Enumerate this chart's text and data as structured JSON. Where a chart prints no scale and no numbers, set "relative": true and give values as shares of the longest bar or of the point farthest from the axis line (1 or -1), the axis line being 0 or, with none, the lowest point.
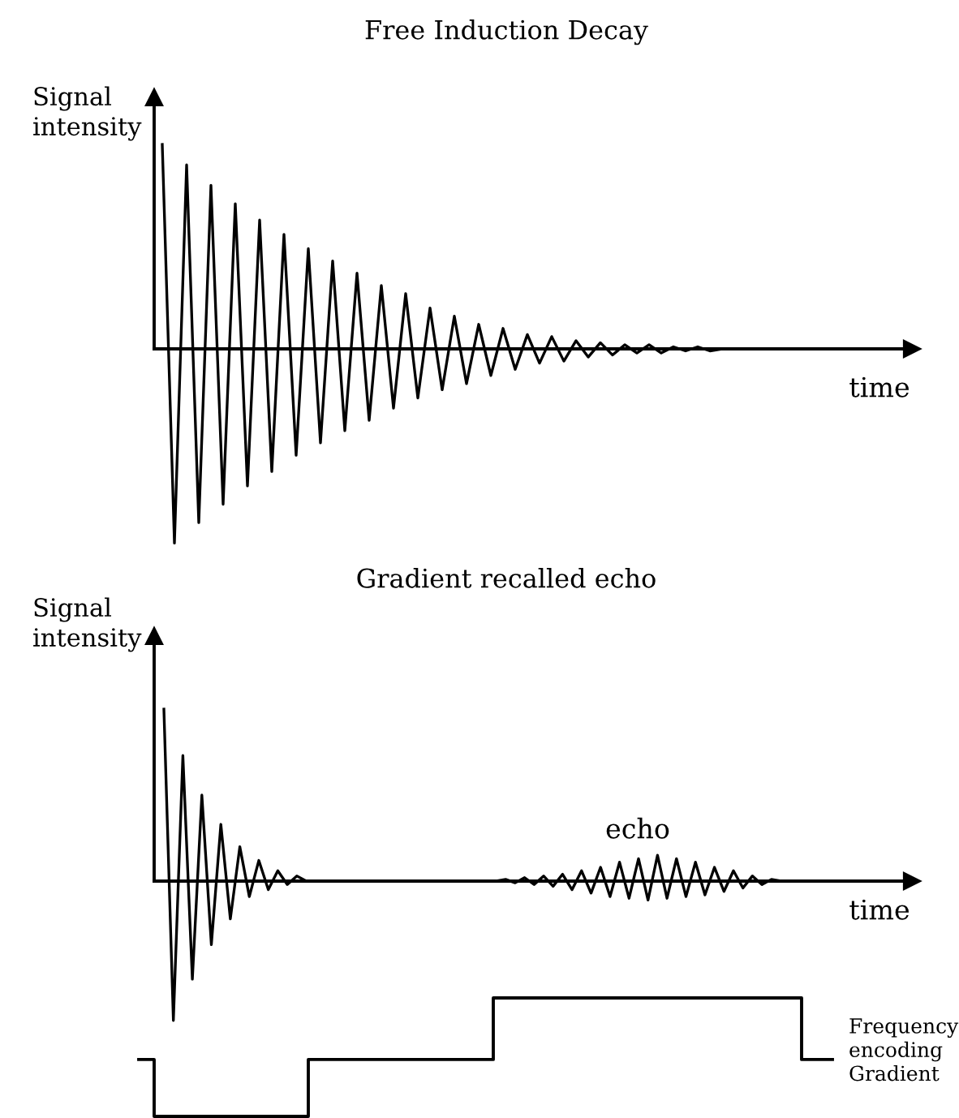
{
  "chart_data": [
    {
      "type": "line",
      "title": "Free Induction Decay",
      "xlabel": "time",
      "ylabel": "Signal\nintensity",
      "relative": true,
      "categories": [
        null,
        null,
        null,
        null,
        null,
        null,
        null,
        null,
        null,
        null,
        null,
        null,
        null,
        null,
        null,
        null,
        null,
        null,
        null,
        null,
        null,
        null,
        null,
        null,
        null,
        null,
        null,
        null,
        null,
        null,
        null,
        null,
        null,
        null,
        null,
        null,
        null,
        null,
        null,
        null,
        null,
        null,
        null,
        null,
        null,
        null,
        null,
        null,
        null,
        null,
        null,
        null,
        null,
        null,
        null,
        null,
        null,
        null,
        null,
        null,
        null,
        null
      ],
      "series": [
        {
          "color": "#000000",
          "values": [
            1,
            -0.95,
            0.9,
            -0.85,
            0.8,
            -0.76,
            0.71,
            -0.67,
            0.63,
            -0.6,
            0.56,
            -0.52,
            0.49,
            -0.46,
            0.43,
            -0.4,
            0.37,
            -0.35,
            0.31,
            -0.29,
            0.27,
            -0.24,
            0.2,
            -0.2,
            0.16,
            -0.17,
            0.12,
            -0.13,
            0.1,
            -0.1,
            0.07,
            -0.07,
            0.06,
            -0.06,
            0.04,
            -0.04,
            0.03,
            -0.03,
            0.02,
            -0.02,
            0.02,
            -0.02,
            0.01,
            -0.01,
            0.01,
            -0.01,
            0,
            0,
            0,
            0,
            0,
            0,
            0,
            0,
            0,
            0,
            0,
            0,
            0,
            0,
            0,
            0
          ]
        }
      ]
    },
    {
      "type": "line",
      "title": "Gradient recalled echo",
      "xlabel": "time",
      "ylabel": "Signal\nintensity",
      "relative": true,
      "annotations": [
        "echo"
      ],
      "categories": [
        null,
        null,
        null,
        null,
        null,
        null,
        null,
        null,
        null,
        null,
        null,
        null,
        null,
        null,
        null,
        null,
        null,
        null,
        null,
        null,
        null,
        null,
        null,
        null,
        null,
        null,
        null,
        null,
        null,
        null,
        null,
        null,
        null,
        null,
        null,
        null,
        null,
        null,
        null,
        null,
        null,
        null,
        null,
        null,
        null,
        null,
        null,
        null,
        null,
        null,
        null,
        null,
        null,
        null,
        null,
        null,
        null,
        null,
        null,
        null,
        null,
        null,
        null,
        null,
        null,
        null,
        null,
        null,
        null,
        null,
        null,
        null,
        null,
        null,
        null,
        null,
        null,
        null,
        null
      ],
      "series": [
        {
          "color": "#000000",
          "values": [
            1,
            -0.81,
            0.73,
            -0.57,
            0.5,
            -0.37,
            0.33,
            -0.22,
            0.2,
            -0.09,
            0.12,
            -0.05,
            0.06,
            -0.02,
            0.03,
            0,
            0,
            0,
            0,
            0,
            0,
            0,
            0,
            0,
            0,
            0,
            0,
            0,
            0,
            0,
            0,
            0,
            0,
            0,
            0,
            0,
            0.01,
            -0.01,
            0.02,
            -0.02,
            0.03,
            -0.03,
            0.04,
            -0.05,
            0.06,
            -0.07,
            0.08,
            -0.09,
            0.11,
            -0.1,
            0.13,
            -0.11,
            0.15,
            -0.1,
            0.13,
            -0.09,
            0.11,
            -0.08,
            0.08,
            -0.06,
            0.06,
            -0.04,
            0.03,
            -0.02,
            0.01,
            0,
            0,
            0,
            0,
            0,
            0,
            0,
            0,
            0,
            0,
            0,
            0,
            0,
            0
          ]
        }
      ]
    },
    {
      "type": "step",
      "relative": true,
      "categories": [
        null,
        null,
        null,
        null,
        null,
        null,
        null,
        null,
        null,
        null,
        null,
        null,
        null,
        null,
        null,
        null,
        null,
        null,
        null,
        null,
        null,
        null,
        null,
        null,
        null,
        null,
        null,
        null,
        null,
        null,
        null,
        null,
        null,
        null,
        null,
        null,
        null,
        null,
        null,
        null,
        null,
        null,
        null,
        null,
        null,
        null
      ],
      "series": [
        {
          "name": "Frequency\nencoding\nGradient",
          "color": "#000000",
          "values": [
            0.48,
            0,
            0,
            0,
            0,
            0,
            0,
            0,
            0,
            0,
            0,
            0.48,
            0.48,
            0.48,
            0.48,
            0.48,
            0.48,
            0.48,
            0.48,
            0.48,
            0.48,
            0.48,
            0.48,
            1,
            1,
            1,
            1,
            1,
            1,
            1,
            1,
            1,
            1,
            1,
            1,
            1,
            1,
            1,
            1,
            1,
            1,
            1,
            1,
            0.48,
            0.48,
            0.48
          ]
        }
      ]
    }
  ]
}
